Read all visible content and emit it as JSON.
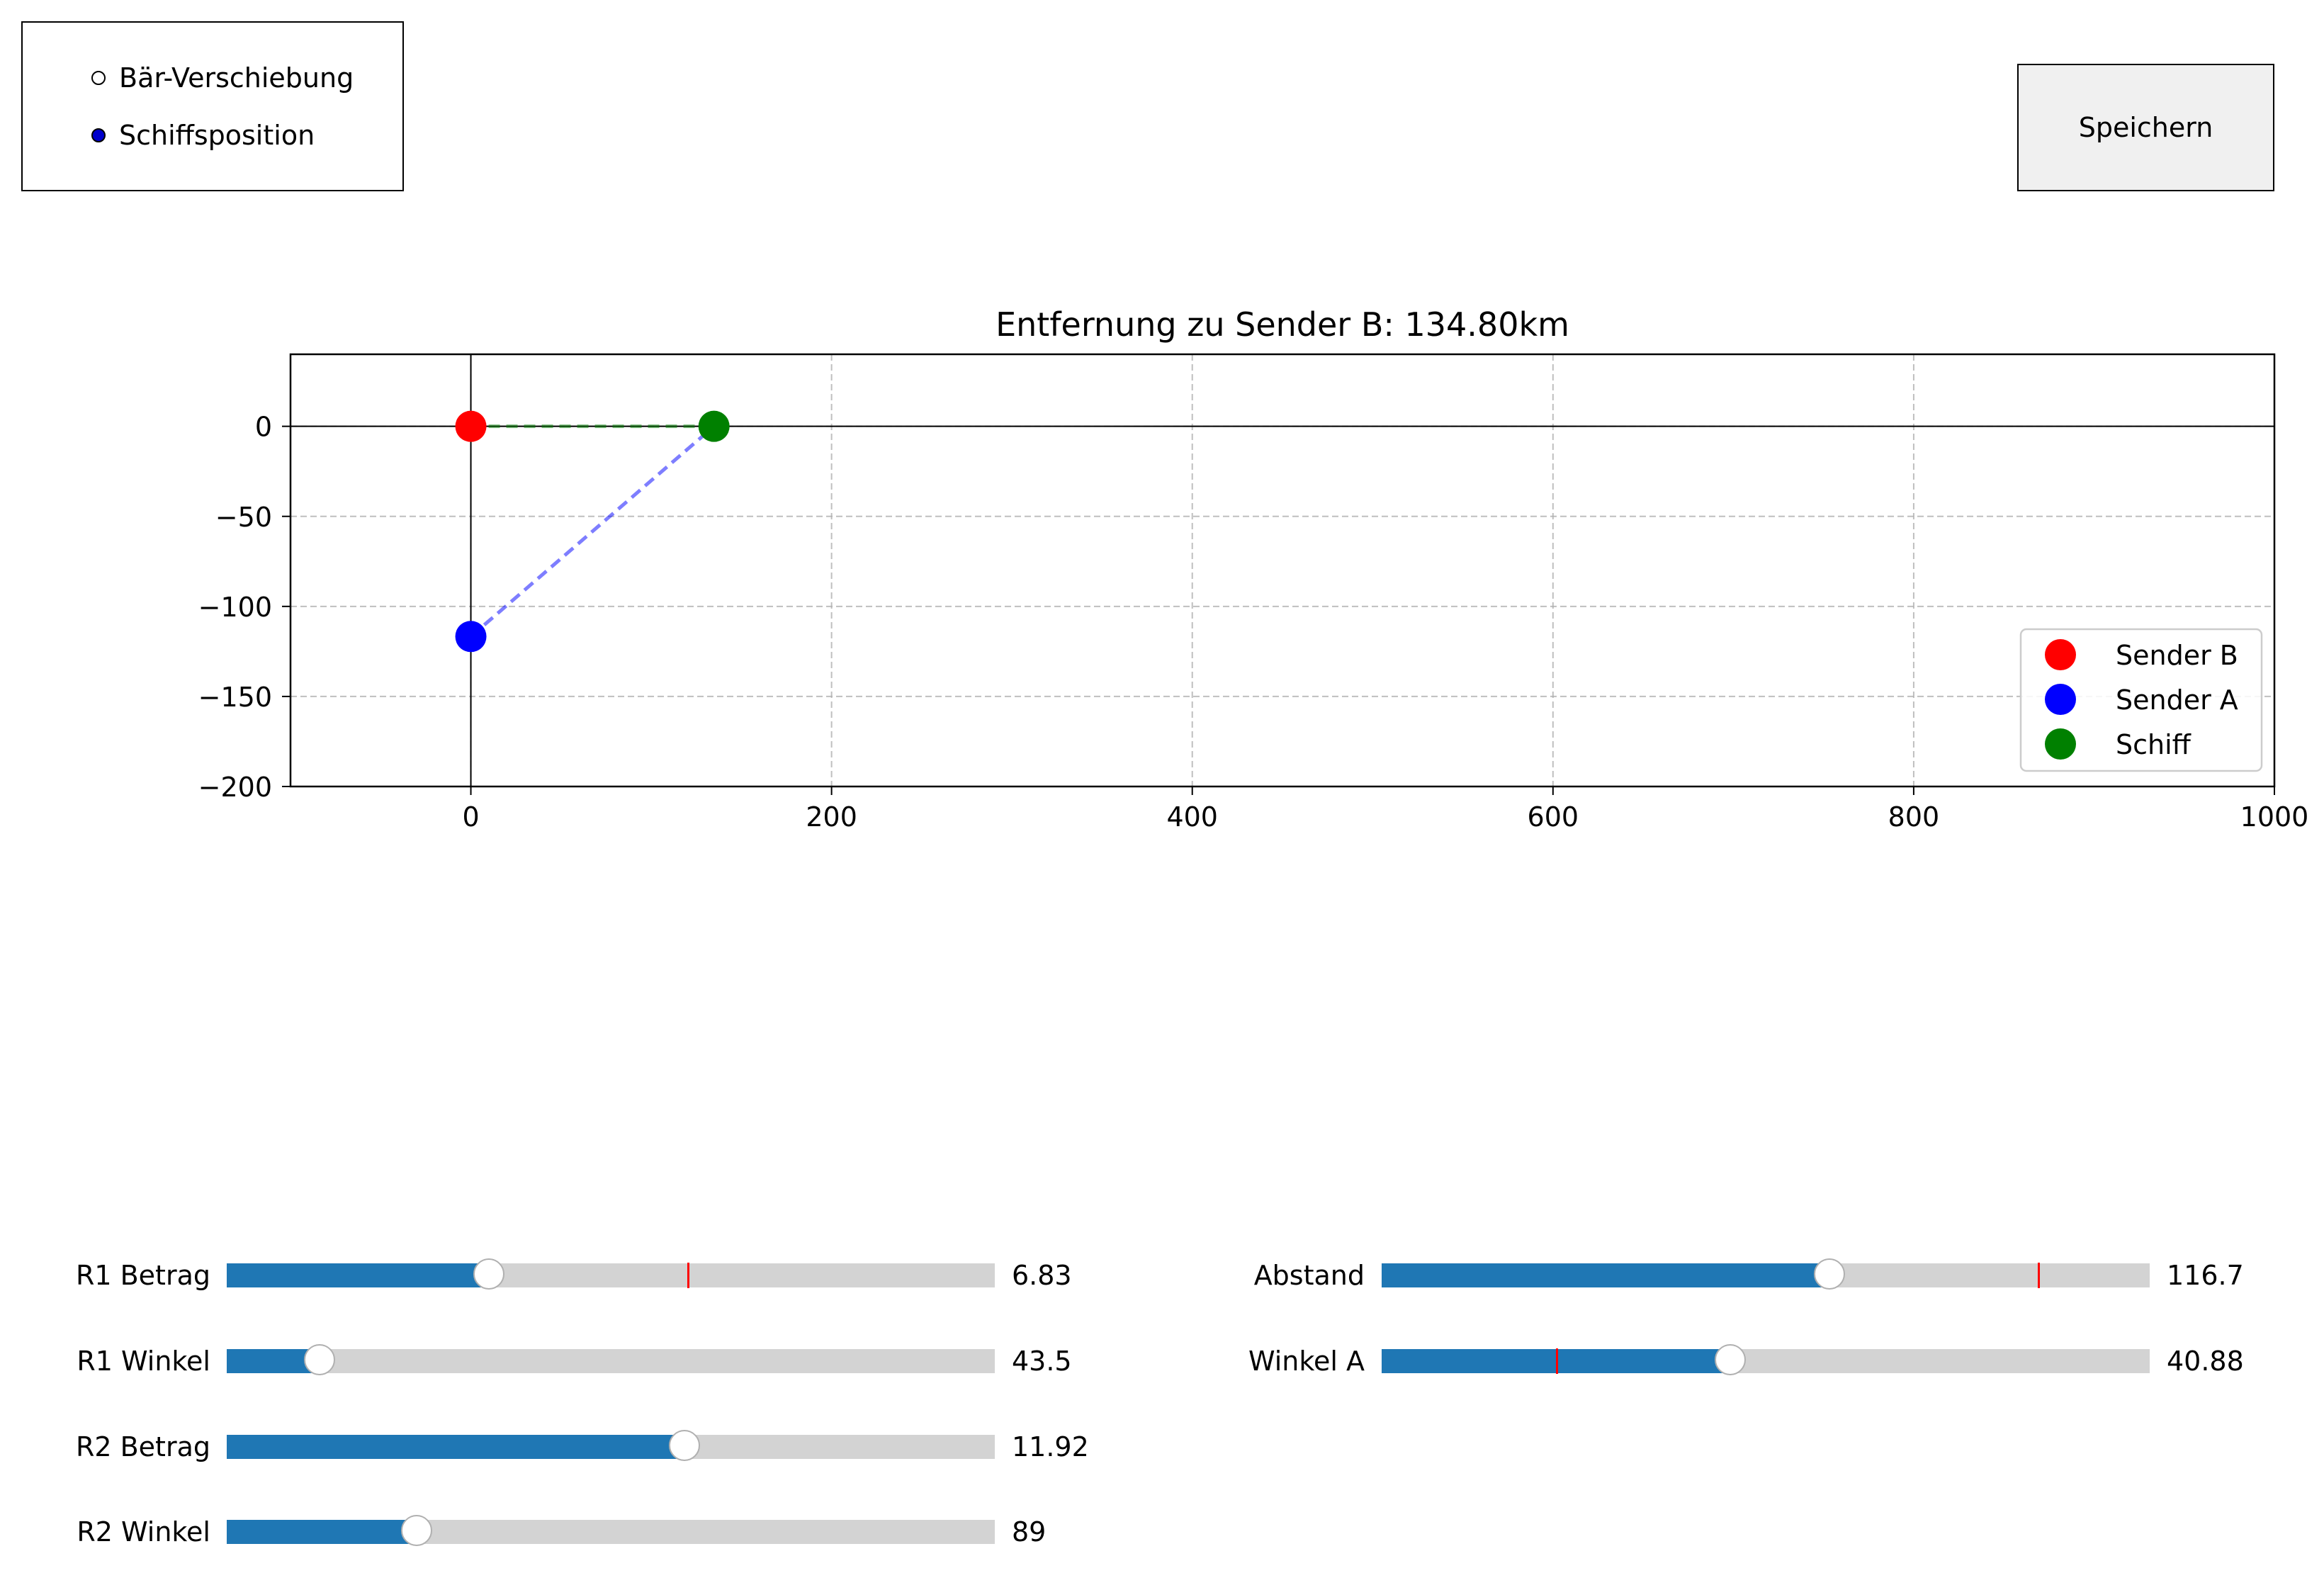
{
  "radio": {
    "items": [
      {
        "label": "Bär-Verschiebung",
        "selected": false
      },
      {
        "label": "Schiffsposition",
        "selected": true
      }
    ],
    "selected_color": "#0000cc"
  },
  "toolbar": {
    "save_label": "Speichern"
  },
  "chart_data": {
    "type": "scatter",
    "title": "Entfernung zu Sender B: 134.80km",
    "xlabel": "",
    "ylabel": "",
    "xlim": [
      -100,
      1000
    ],
    "ylim": [
      -200,
      40
    ],
    "xticks": [
      0,
      200,
      400,
      600,
      800,
      1000
    ],
    "xtick_labels": [
      "0",
      "200",
      "400",
      "600",
      "800",
      "1000"
    ],
    "yticks": [
      0,
      -50,
      -100,
      -150,
      -200
    ],
    "ytick_labels": [
      "0",
      "−50",
      "−100",
      "−150",
      "−200"
    ],
    "grid": true,
    "legend_position": "lower-right",
    "points": [
      {
        "name": "Sender B",
        "x": 0,
        "y": 0,
        "color": "#ff0000"
      },
      {
        "name": "Sender A",
        "x": 0,
        "y": -116.7,
        "color": "#0000ff"
      },
      {
        "name": "Schiff",
        "x": 134.8,
        "y": 0,
        "color": "#008000"
      }
    ],
    "lines": [
      {
        "from": [
          0,
          0
        ],
        "to": [
          134.8,
          0
        ],
        "color": "#008000",
        "style": "dashed"
      },
      {
        "from": [
          0,
          -116.7
        ],
        "to": [
          134.8,
          0
        ],
        "color": "#0000ff",
        "style": "dashed"
      }
    ]
  },
  "sliders": [
    {
      "name": "r1-betrag",
      "label": "R1 Betrag",
      "value_text": "6.83",
      "fraction": 0.341,
      "initial_fraction": 0.6
    },
    {
      "name": "r1-winkel",
      "label": "R1 Winkel",
      "value_text": "43.5",
      "fraction": 0.121,
      "initial_fraction": null
    },
    {
      "name": "r2-betrag",
      "label": "R2 Betrag",
      "value_text": "11.92",
      "fraction": 0.596,
      "initial_fraction": null
    },
    {
      "name": "r2-winkel",
      "label": "R2 Winkel",
      "value_text": "89",
      "fraction": 0.247,
      "initial_fraction": null
    },
    {
      "name": "abstand",
      "label": "Abstand",
      "value_text": "116.7",
      "fraction": 0.583,
      "initial_fraction": 0.854
    },
    {
      "name": "winkel-a",
      "label": "Winkel A",
      "value_text": "40.88",
      "fraction": 0.454,
      "initial_fraction": 0.227
    }
  ]
}
